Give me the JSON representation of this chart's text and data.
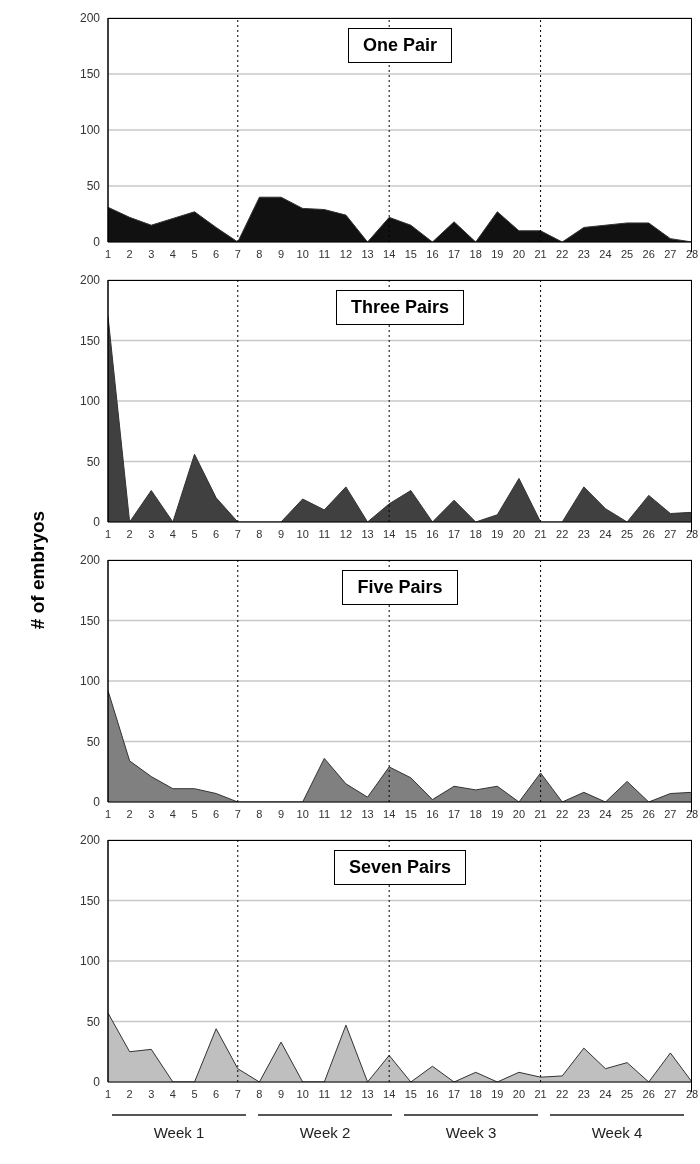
{
  "chart_data": [
    {
      "type": "area",
      "title": "One Pair",
      "x": [
        1,
        2,
        3,
        4,
        5,
        6,
        7,
        8,
        9,
        10,
        11,
        12,
        13,
        14,
        15,
        16,
        17,
        18,
        19,
        20,
        21,
        22,
        23,
        24,
        25,
        26,
        27,
        28
      ],
      "values": [
        31,
        22,
        15,
        21,
        27,
        13,
        0,
        40,
        40,
        30,
        29,
        24,
        0,
        22,
        15,
        0,
        18,
        0,
        27,
        10,
        10,
        0,
        13,
        15,
        17,
        17,
        3,
        0
      ],
      "color": "#111111",
      "xlim": [
        1,
        28
      ],
      "xticks": [
        1,
        2,
        3,
        4,
        5,
        6,
        7,
        8,
        9,
        10,
        11,
        12,
        13,
        14,
        15,
        16,
        17,
        18,
        19,
        20,
        21,
        22,
        23,
        24,
        25,
        26,
        27,
        28
      ],
      "ylim": [
        0,
        200
      ],
      "yticks": [
        0,
        50,
        100,
        150,
        200
      ],
      "grid": "y",
      "ref_lines": [
        {
          "axis": "x",
          "value": 7,
          "line_style": "dotted",
          "color": "#000000"
        },
        {
          "axis": "x",
          "value": 14,
          "line_style": "dotted",
          "color": "#000000"
        },
        {
          "axis": "x",
          "value": 21,
          "line_style": "dotted",
          "color": "#000000"
        }
      ]
    },
    {
      "type": "area",
      "title": "Three Pairs",
      "x": [
        1,
        2,
        3,
        4,
        5,
        6,
        7,
        8,
        9,
        10,
        11,
        12,
        13,
        14,
        15,
        16,
        17,
        18,
        19,
        20,
        21,
        22,
        23,
        24,
        25,
        26,
        27,
        28
      ],
      "values": [
        170,
        0,
        26,
        0,
        56,
        20,
        0,
        0,
        0,
        19,
        10,
        29,
        0,
        15,
        26,
        0,
        18,
        0,
        6,
        36,
        0,
        0,
        29,
        11,
        0,
        22,
        7,
        8
      ],
      "color": "#404040",
      "xlim": [
        1,
        28
      ],
      "xticks": [
        1,
        2,
        3,
        4,
        5,
        6,
        7,
        8,
        9,
        10,
        11,
        12,
        13,
        14,
        15,
        16,
        17,
        18,
        19,
        20,
        21,
        22,
        23,
        24,
        25,
        26,
        27,
        28
      ],
      "ylim": [
        0,
        200
      ],
      "yticks": [
        0,
        50,
        100,
        150,
        200
      ],
      "grid": "y",
      "ref_lines": [
        {
          "axis": "x",
          "value": 7,
          "line_style": "dotted",
          "color": "#000000"
        },
        {
          "axis": "x",
          "value": 14,
          "line_style": "dotted",
          "color": "#000000"
        },
        {
          "axis": "x",
          "value": 21,
          "line_style": "dotted",
          "color": "#000000"
        }
      ]
    },
    {
      "type": "area",
      "title": "Five Pairs",
      "ylabel": "# of embryos",
      "x": [
        1,
        2,
        3,
        4,
        5,
        6,
        7,
        8,
        9,
        10,
        11,
        12,
        13,
        14,
        15,
        16,
        17,
        18,
        19,
        20,
        21,
        22,
        23,
        24,
        25,
        26,
        27,
        28
      ],
      "values": [
        92,
        34,
        21,
        11,
        11,
        7,
        0,
        0,
        0,
        0,
        36,
        15,
        4,
        29,
        20,
        2,
        13,
        10,
        13,
        0,
        24,
        0,
        8,
        0,
        17,
        0,
        7,
        8
      ],
      "color": "#808080",
      "xlim": [
        1,
        28
      ],
      "xticks": [
        1,
        2,
        3,
        4,
        5,
        6,
        7,
        8,
        9,
        10,
        11,
        12,
        13,
        14,
        15,
        16,
        17,
        18,
        19,
        20,
        21,
        22,
        23,
        24,
        25,
        26,
        27,
        28
      ],
      "ylim": [
        0,
        200
      ],
      "yticks": [
        0,
        50,
        100,
        150,
        200
      ],
      "grid": "y",
      "ref_lines": [
        {
          "axis": "x",
          "value": 7,
          "line_style": "dotted",
          "color": "#000000"
        },
        {
          "axis": "x",
          "value": 14,
          "line_style": "dotted",
          "color": "#000000"
        },
        {
          "axis": "x",
          "value": 21,
          "line_style": "dotted",
          "color": "#000000"
        }
      ]
    },
    {
      "type": "area",
      "title": "Seven Pairs",
      "x": [
        1,
        2,
        3,
        4,
        5,
        6,
        7,
        8,
        9,
        10,
        11,
        12,
        13,
        14,
        15,
        16,
        17,
        18,
        19,
        20,
        21,
        22,
        23,
        24,
        25,
        26,
        27,
        28
      ],
      "values": [
        57,
        25,
        27,
        0,
        0,
        44,
        11,
        0,
        33,
        0,
        0,
        47,
        0,
        22,
        0,
        13,
        0,
        8,
        0,
        8,
        4,
        5,
        28,
        11,
        16,
        0,
        24,
        0
      ],
      "color": "#bfbfbf",
      "xlim": [
        1,
        28
      ],
      "xticks": [
        1,
        2,
        3,
        4,
        5,
        6,
        7,
        8,
        9,
        10,
        11,
        12,
        13,
        14,
        15,
        16,
        17,
        18,
        19,
        20,
        21,
        22,
        23,
        24,
        25,
        26,
        27,
        28
      ],
      "ylim": [
        0,
        200
      ],
      "yticks": [
        0,
        50,
        100,
        150,
        200
      ],
      "grid": "y",
      "ref_lines": [
        {
          "axis": "x",
          "value": 7,
          "line_style": "dotted",
          "color": "#000000"
        },
        {
          "axis": "x",
          "value": 14,
          "line_style": "dotted",
          "color": "#000000"
        },
        {
          "axis": "x",
          "value": 21,
          "line_style": "dotted",
          "color": "#000000"
        }
      ],
      "annotations": [
        "Week 1",
        "Week 2",
        "Week 3",
        "Week 4"
      ]
    }
  ]
}
